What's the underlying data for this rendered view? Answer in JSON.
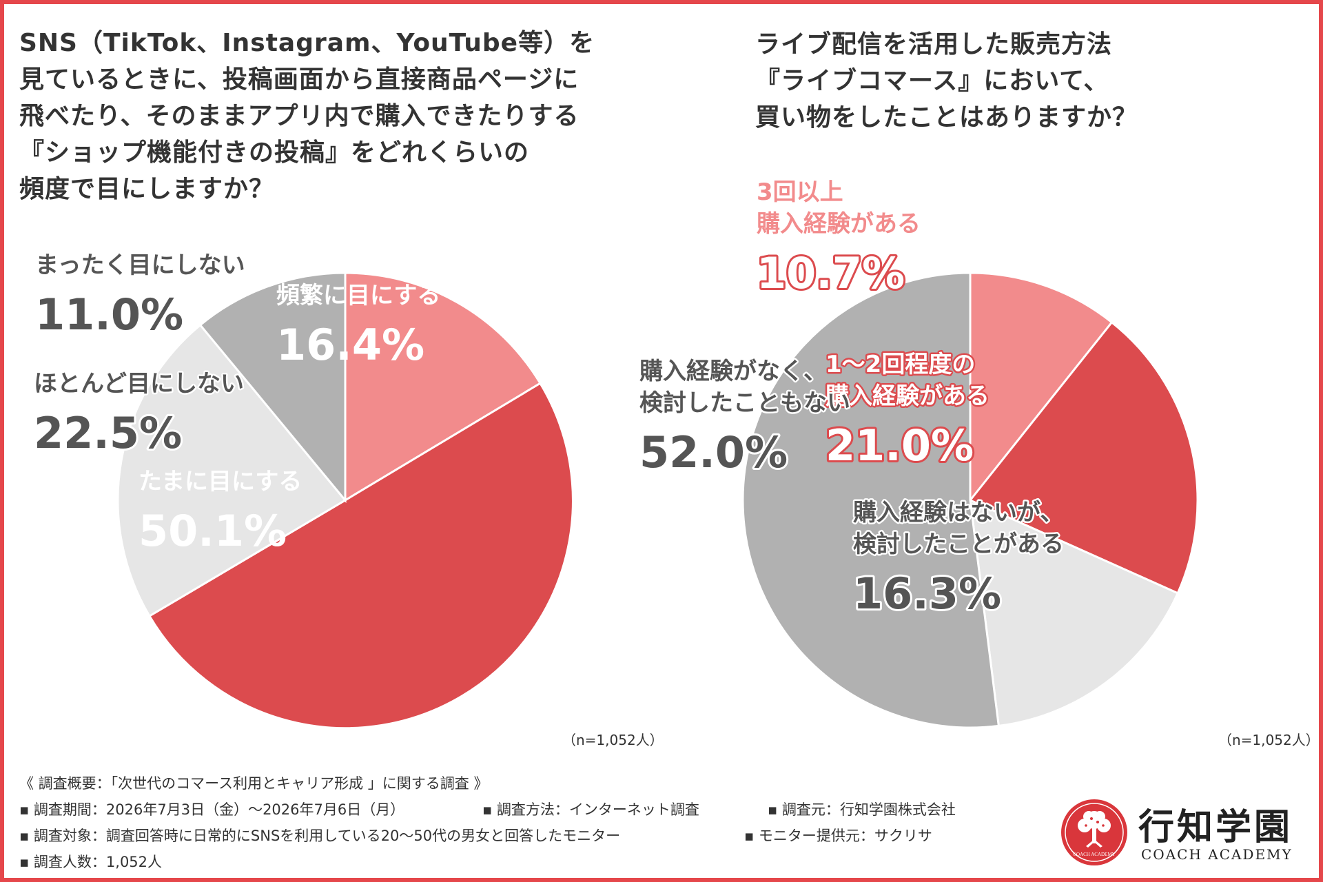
{
  "left_question": {
    "title": "SNS（TikTok、Instagram、YouTube等）を\n見ているときに、投稿画面から直接商品ページに\n飛べたり、そのままアプリ内で購入できたりする\n『ショップ機能付きの投稿』をどれくらいの\n頻度で目にしますか？",
    "sample_note": "（n=1,052人）"
  },
  "right_question": {
    "title": "ライブ配信を活用した販売方法\n『ライブコマース』において、\n買い物をしたことはありますか？",
    "sample_note": "（n=1,052人）"
  },
  "chart_data": [
    {
      "type": "pie",
      "start": "12 o'clock, clockwise",
      "series": [
        {
          "values": [
            16.4,
            50.1,
            22.5,
            11.0
          ],
          "labels": [
            "頻繁に目にする",
            "たまに目にする",
            "ほとんど目にしない",
            "まったく目にしない"
          ],
          "value_labels": [
            "16.4%",
            "50.1%",
            "22.5%",
            "11.0%"
          ],
          "colors": [
            "#f28b8c",
            "#dc4b4e",
            "#e6e6e6",
            "#b1b1b1"
          ]
        }
      ]
    },
    {
      "type": "pie",
      "start": "12 o'clock, clockwise",
      "series": [
        {
          "values": [
            10.7,
            21.0,
            16.3,
            52.0
          ],
          "labels": [
            "3回以上\n購入経験がある",
            "1～2回程度の\n購入経験がある",
            "購入経験はないが、\n検討したことがある",
            "購入経験がなく、\n検討したこともない"
          ],
          "value_labels": [
            "10.7%",
            "21.0%",
            "16.3%",
            "52.0%"
          ],
          "colors": [
            "#f28b8c",
            "#dc4b4e",
            "#e6e6e6",
            "#b1b1b1"
          ]
        }
      ]
    }
  ],
  "survey": {
    "heading": "《 調査概要：「次世代のコマース利用とキャリア形成 」に関する調査 》",
    "period": "▪ 調査期間：2026年7月3日（金）～2026年7月6日（月）",
    "method": "▪ 調査方法：インターネット調査",
    "source": "▪ 調査元：行知学園株式会社",
    "target": "▪ 調査対象：調査回答時に日常的にSNSを利用している20～50代の男女と回答したモニター",
    "provider": "▪ モニター提供元：サクリサ",
    "count": "▪ 調査人数：1,052人"
  },
  "logo": {
    "name": "行知学園",
    "subtitle": "COACH ACADEMY",
    "emblem_text": "COACH ACADEMY",
    "color": "#d9363b"
  }
}
